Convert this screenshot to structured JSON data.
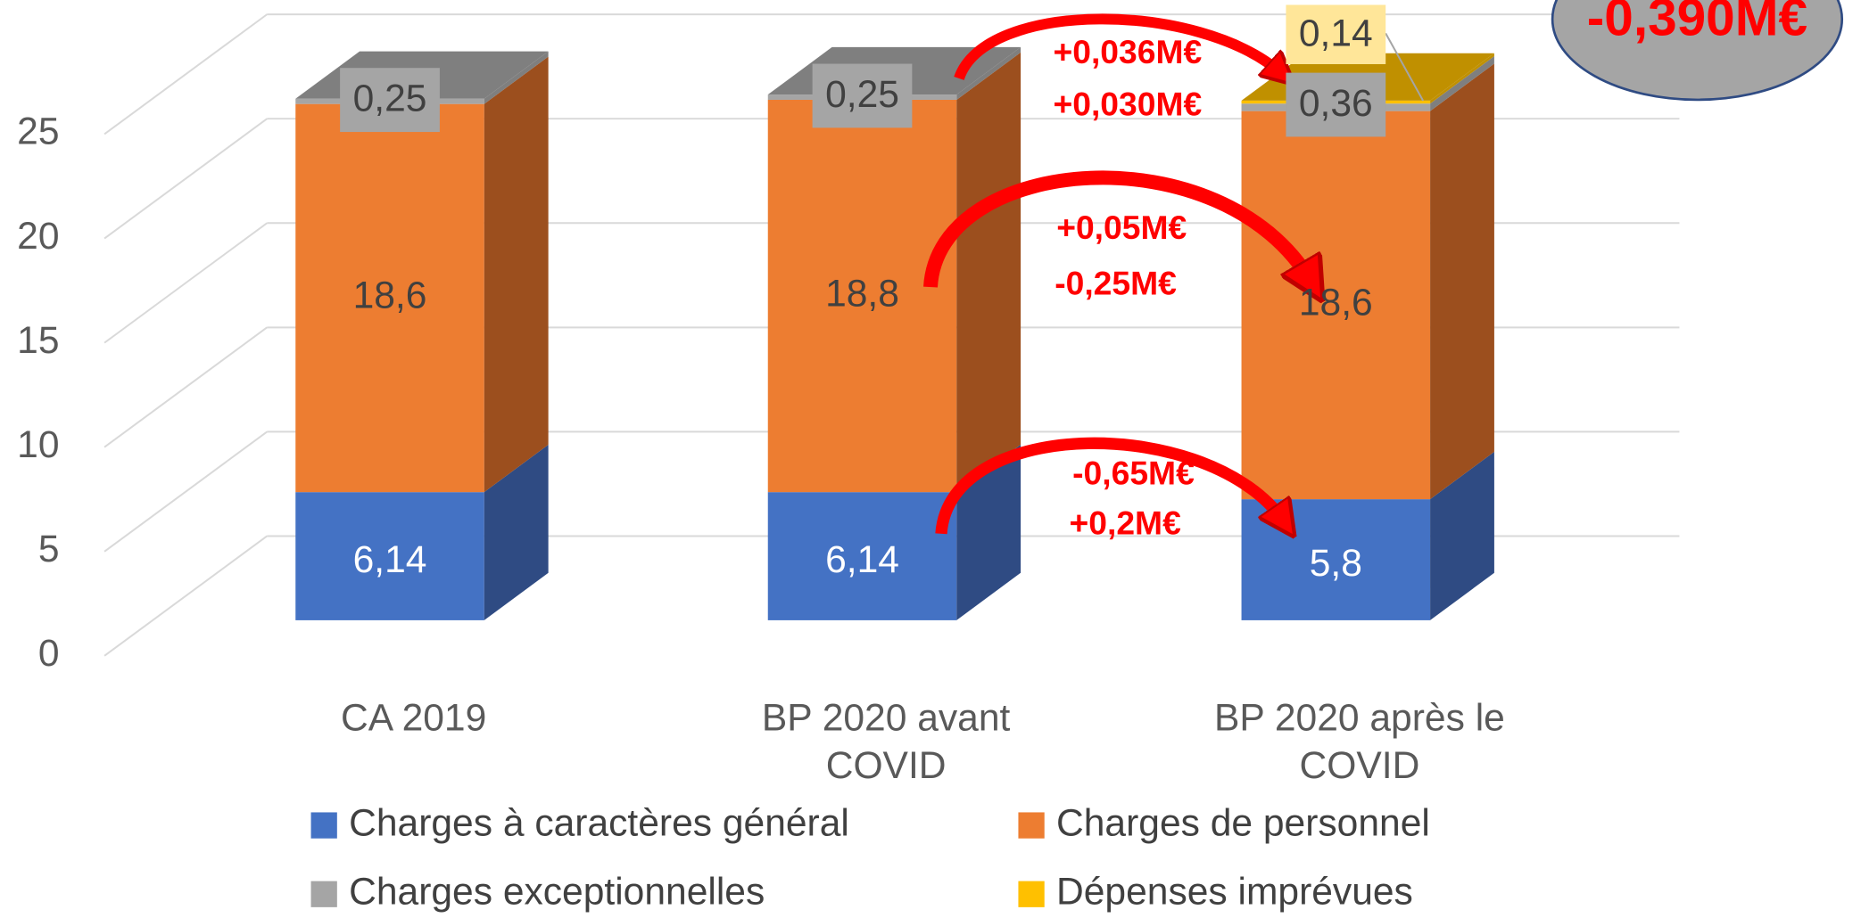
{
  "chart_data": {
    "type": "bar3d_stacked",
    "categories": [
      "CA 2019",
      "BP  2020 avant COVID",
      "BP 2020 après le COVID"
    ],
    "series": [
      {
        "name": "Charges à caractères général",
        "color": "#4472c4",
        "side": "#2f4b83",
        "values": [
          6.14,
          6.14,
          5.8
        ],
        "value_labels": [
          "6,14",
          "6,14",
          "5,8"
        ]
      },
      {
        "name": "Charges de personnel",
        "color": "#ed7d31",
        "side": "#9c4f1e",
        "values": [
          18.6,
          18.8,
          18.6
        ],
        "value_labels": [
          "18,6",
          "18,8",
          "18,6"
        ]
      },
      {
        "name": "Charges exceptionnelles",
        "color": "#a5a5a5",
        "side": "#7f7f7f",
        "values": [
          0.25,
          0.25,
          0.36
        ],
        "value_labels": [
          "0,25",
          "0,25",
          "0,36"
        ]
      },
      {
        "name": "Dépenses imprévues",
        "color": "#ffc000",
        "side": "#c09000",
        "values": [
          null,
          null,
          0.14
        ],
        "value_labels": [
          null,
          null,
          "0,14"
        ]
      }
    ],
    "ylim": [
      0,
      25
    ],
    "yticks": [
      0,
      5,
      10,
      15,
      20,
      25
    ],
    "grid": true,
    "annotations": [
      "+0,036M€",
      "+0,030M€",
      "+0,05M€",
      "-0,25M€",
      "-0,65M€",
      "+0,2M€",
      "-0,390M€"
    ]
  }
}
